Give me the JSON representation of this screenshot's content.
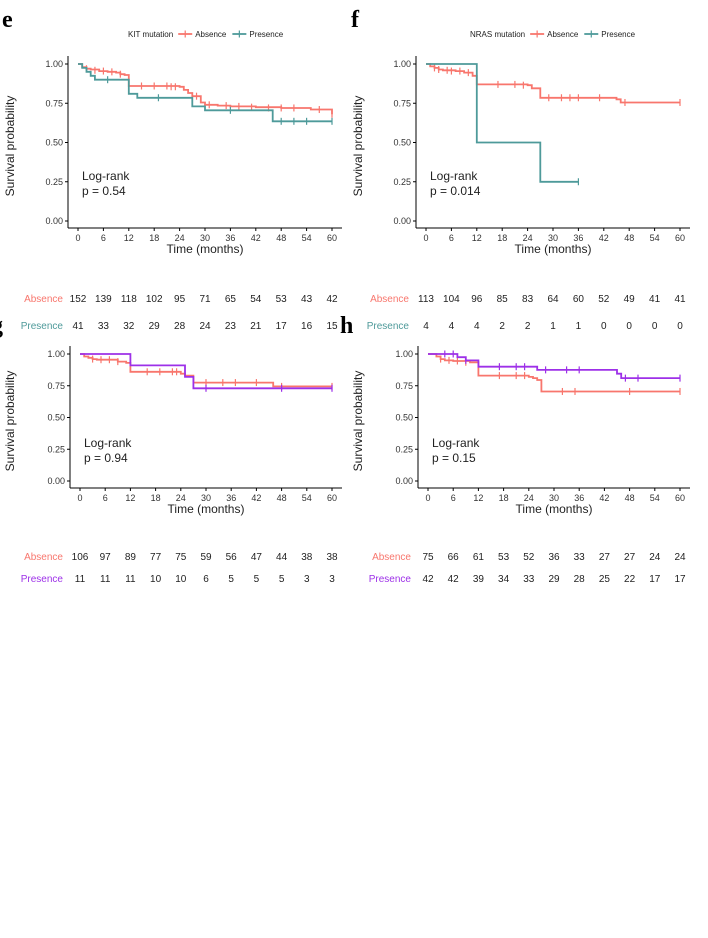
{
  "chart_data": [
    {
      "panel": "e",
      "type": "line",
      "legend_title": "KIT mutation",
      "legend_position": "top",
      "xlabel": "Time (months)",
      "ylabel": "Survival probability",
      "x_ticks": [
        "0",
        "6",
        "12",
        "18",
        "24",
        "30",
        "36",
        "42",
        "48",
        "54",
        "60"
      ],
      "y_ticks": [
        "0.00",
        "0.25",
        "0.50",
        "0.75",
        "1.00"
      ],
      "xlim": [
        0,
        60
      ],
      "ylim": [
        0,
        1
      ],
      "logrank_label": "Log-rank",
      "p_text": "p = 0.54",
      "series": [
        {
          "name": "Absence",
          "color": "#F8766D",
          "steps": [
            [
              0,
              1
            ],
            [
              1,
              0.98
            ],
            [
              2,
              0.97
            ],
            [
              3,
              0.965
            ],
            [
              5,
              0.955
            ],
            [
              7,
              0.95
            ],
            [
              9,
              0.945
            ],
            [
              10,
              0.935
            ],
            [
              11,
              0.93
            ],
            [
              12,
              0.86
            ],
            [
              24,
              0.855
            ],
            [
              25,
              0.835
            ],
            [
              26,
              0.815
            ],
            [
              27,
              0.795
            ],
            [
              29,
              0.755
            ],
            [
              30,
              0.74
            ],
            [
              33,
              0.735
            ],
            [
              36,
              0.73
            ],
            [
              42,
              0.725
            ],
            [
              48,
              0.72
            ],
            [
              55,
              0.71
            ],
            [
              60,
              0.68
            ]
          ],
          "censors": [
            [
              2,
              0.97
            ],
            [
              4,
              0.96
            ],
            [
              6,
              0.955
            ],
            [
              8,
              0.95
            ],
            [
              10,
              0.935
            ],
            [
              15,
              0.86
            ],
            [
              18,
              0.86
            ],
            [
              21,
              0.86
            ],
            [
              22,
              0.855
            ],
            [
              23,
              0.855
            ],
            [
              28,
              0.795
            ],
            [
              31,
              0.74
            ],
            [
              35,
              0.735
            ],
            [
              38,
              0.73
            ],
            [
              41,
              0.725
            ],
            [
              45,
              0.72
            ],
            [
              48,
              0.72
            ],
            [
              51,
              0.72
            ],
            [
              57,
              0.71
            ],
            [
              60,
              0.68
            ]
          ]
        },
        {
          "name": "Presence",
          "color": "#4E9A9A",
          "steps": [
            [
              0,
              1
            ],
            [
              1,
              0.975
            ],
            [
              2,
              0.95
            ],
            [
              3,
              0.925
            ],
            [
              4,
              0.9
            ],
            [
              12,
              0.81
            ],
            [
              14,
              0.785
            ],
            [
              27,
              0.73
            ],
            [
              30,
              0.705
            ],
            [
              46,
              0.635
            ],
            [
              60,
              0.635
            ]
          ],
          "censors": [
            [
              7,
              0.9
            ],
            [
              19,
              0.785
            ],
            [
              36,
              0.705
            ],
            [
              48,
              0.635
            ],
            [
              51,
              0.635
            ],
            [
              54,
              0.635
            ],
            [
              60,
              0.635
            ]
          ]
        }
      ],
      "risk_table": {
        "Absence": [
          "152",
          "139",
          "118",
          "102",
          "95",
          "71",
          "65",
          "54",
          "53",
          "43",
          "42"
        ],
        "Presence": [
          "41",
          "33",
          "32",
          "29",
          "28",
          "24",
          "23",
          "21",
          "17",
          "16",
          "15"
        ]
      }
    },
    {
      "panel": "f",
      "type": "line",
      "legend_title": "NRAS mutation",
      "legend_position": "top",
      "xlabel": "Time (months)",
      "ylabel": "Survival probability",
      "x_ticks": [
        "0",
        "6",
        "12",
        "18",
        "24",
        "30",
        "36",
        "42",
        "48",
        "54",
        "60"
      ],
      "y_ticks": [
        "0.00",
        "0.25",
        "0.50",
        "0.75",
        "1.00"
      ],
      "xlim": [
        0,
        60
      ],
      "ylim": [
        0,
        1
      ],
      "logrank_label": "Log-rank",
      "p_text": "p = 0.014",
      "series": [
        {
          "name": "Absence",
          "color": "#F8766D",
          "steps": [
            [
              0,
              1
            ],
            [
              1,
              0.985
            ],
            [
              2,
              0.975
            ],
            [
              3,
              0.965
            ],
            [
              4,
              0.96
            ],
            [
              7,
              0.955
            ],
            [
              9,
              0.945
            ],
            [
              11,
              0.925
            ],
            [
              12,
              0.87
            ],
            [
              24,
              0.865
            ],
            [
              25,
              0.845
            ],
            [
              27,
              0.785
            ],
            [
              45,
              0.775
            ],
            [
              46,
              0.755
            ],
            [
              60,
              0.755
            ]
          ],
          "censors": [
            [
              2,
              0.975
            ],
            [
              3,
              0.965
            ],
            [
              5,
              0.96
            ],
            [
              6,
              0.955
            ],
            [
              8,
              0.955
            ],
            [
              10,
              0.945
            ],
            [
              17,
              0.87
            ],
            [
              21,
              0.87
            ],
            [
              23,
              0.865
            ],
            [
              29,
              0.785
            ],
            [
              32,
              0.785
            ],
            [
              34,
              0.785
            ],
            [
              36,
              0.785
            ],
            [
              41,
              0.785
            ],
            [
              47,
              0.755
            ],
            [
              60,
              0.755
            ]
          ]
        },
        {
          "name": "Presence",
          "color": "#4E9A9A",
          "steps": [
            [
              0,
              1
            ],
            [
              12,
              0.5
            ],
            [
              27,
              0.25
            ],
            [
              36,
              0.25
            ]
          ],
          "censors": [
            [
              36,
              0.25
            ]
          ]
        }
      ],
      "risk_table": {
        "Absence": [
          "113",
          "104",
          "96",
          "85",
          "83",
          "64",
          "60",
          "52",
          "49",
          "41",
          "41"
        ],
        "Presence": [
          "4",
          "4",
          "4",
          "2",
          "2",
          "1",
          "1",
          "0",
          "0",
          "0",
          "0"
        ]
      }
    },
    {
      "panel": "g",
      "type": "line",
      "xlabel": "Time (months)",
      "ylabel": "Survival probability",
      "x_ticks": [
        "0",
        "6",
        "12",
        "18",
        "24",
        "30",
        "36",
        "42",
        "48",
        "54",
        "60"
      ],
      "y_ticks": [
        "0.00",
        "0.25",
        "0.50",
        "0.75",
        "1.00"
      ],
      "xlim": [
        0,
        60
      ],
      "ylim": [
        0,
        1
      ],
      "logrank_label": "Log-rank",
      "p_text": "p = 0.94",
      "series": [
        {
          "name": "Absence",
          "color": "#F8766D",
          "steps": [
            [
              0,
              1
            ],
            [
              1,
              0.98
            ],
            [
              2,
              0.97
            ],
            [
              3,
              0.96
            ],
            [
              4,
              0.955
            ],
            [
              9,
              0.94
            ],
            [
              11,
              0.93
            ],
            [
              12,
              0.86
            ],
            [
              24,
              0.845
            ],
            [
              25,
              0.83
            ],
            [
              27,
              0.775
            ],
            [
              46,
              0.745
            ],
            [
              60,
              0.745
            ]
          ],
          "censors": [
            [
              3,
              0.96
            ],
            [
              5,
              0.955
            ],
            [
              7,
              0.955
            ],
            [
              9,
              0.94
            ],
            [
              16,
              0.86
            ],
            [
              19,
              0.86
            ],
            [
              22,
              0.86
            ],
            [
              23,
              0.86
            ],
            [
              30,
              0.775
            ],
            [
              34,
              0.775
            ],
            [
              37,
              0.775
            ],
            [
              42,
              0.775
            ],
            [
              48,
              0.745
            ],
            [
              60,
              0.745
            ]
          ]
        },
        {
          "name": "Presence",
          "color": "#9D30E8",
          "steps": [
            [
              0,
              1
            ],
            [
              12,
              0.91
            ],
            [
              25,
              0.82
            ],
            [
              27,
              0.73
            ],
            [
              60,
              0.73
            ]
          ],
          "censors": [
            [
              30,
              0.73
            ],
            [
              48,
              0.73
            ],
            [
              60,
              0.73
            ]
          ]
        }
      ],
      "risk_table": {
        "Absence": [
          "106",
          "97",
          "89",
          "77",
          "75",
          "59",
          "56",
          "47",
          "44",
          "38",
          "38"
        ],
        "Presence": [
          "11",
          "11",
          "11",
          "10",
          "10",
          "6",
          "5",
          "5",
          "5",
          "3",
          "3"
        ]
      }
    },
    {
      "panel": "h",
      "type": "line",
      "xlabel": "Time (months)",
      "ylabel": "Survival probability",
      "x_ticks": [
        "0",
        "6",
        "12",
        "18",
        "24",
        "30",
        "36",
        "42",
        "48",
        "54",
        "60"
      ],
      "y_ticks": [
        "0.00",
        "0.25",
        "0.50",
        "0.75",
        "1.00"
      ],
      "xlim": [
        0,
        60
      ],
      "ylim": [
        0,
        1
      ],
      "logrank_label": "Log-rank",
      "p_text": "p = 0.15",
      "series": [
        {
          "name": "Absence",
          "color": "#F8766D",
          "steps": [
            [
              0,
              1
            ],
            [
              2,
              0.98
            ],
            [
              3,
              0.96
            ],
            [
              4,
              0.95
            ],
            [
              6,
              0.945
            ],
            [
              10,
              0.935
            ],
            [
              12,
              0.83
            ],
            [
              24,
              0.82
            ],
            [
              25,
              0.81
            ],
            [
              26,
              0.795
            ],
            [
              27,
              0.705
            ],
            [
              60,
              0.705
            ]
          ],
          "censors": [
            [
              3,
              0.96
            ],
            [
              5,
              0.95
            ],
            [
              7,
              0.945
            ],
            [
              9,
              0.935
            ],
            [
              17,
              0.83
            ],
            [
              21,
              0.83
            ],
            [
              23,
              0.83
            ],
            [
              32,
              0.705
            ],
            [
              35,
              0.705
            ],
            [
              48,
              0.705
            ],
            [
              60,
              0.705
            ]
          ]
        },
        {
          "name": "Presence",
          "color": "#9D30E8",
          "steps": [
            [
              0,
              1
            ],
            [
              7,
              0.975
            ],
            [
              9,
              0.95
            ],
            [
              12,
              0.9
            ],
            [
              26,
              0.875
            ],
            [
              45,
              0.845
            ],
            [
              46,
              0.81
            ],
            [
              60,
              0.81
            ]
          ],
          "censors": [
            [
              4,
              1
            ],
            [
              6,
              1
            ],
            [
              9,
              0.95
            ],
            [
              17,
              0.9
            ],
            [
              21,
              0.9
            ],
            [
              23,
              0.9
            ],
            [
              28,
              0.875
            ],
            [
              33,
              0.875
            ],
            [
              36,
              0.875
            ],
            [
              47,
              0.81
            ],
            [
              50,
              0.81
            ],
            [
              60,
              0.81
            ]
          ]
        }
      ],
      "risk_table": {
        "Absence": [
          "75",
          "66",
          "61",
          "53",
          "52",
          "36",
          "33",
          "27",
          "27",
          "24",
          "24"
        ],
        "Presence": [
          "42",
          "42",
          "39",
          "34",
          "33",
          "29",
          "28",
          "25",
          "22",
          "17",
          "17"
        ]
      }
    }
  ]
}
